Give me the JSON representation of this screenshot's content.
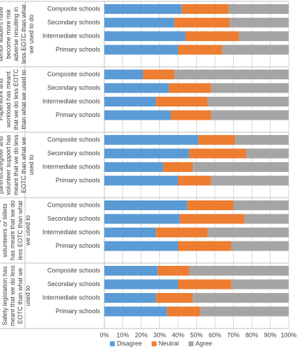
{
  "chart_data": {
    "type": "bar",
    "orientation": "horizontal",
    "stacked": true,
    "groups": [
      {
        "label": "School Boards and senior leaders have become more risk adverse resulting in less EOTC than what we used to do",
        "categories": [
          "Composite schools",
          "Secondary schools",
          "Intermediate schools",
          "Primary schools"
        ]
      },
      {
        "label": "Paperwork and workload has meant that we do less EOTC than what we used to",
        "categories": [
          "Composite schools",
          "Secondary schools",
          "Intermediate schools",
          "Primary schools"
        ]
      },
      {
        "label": "Difficulty getting parent/caregiver and volunteer support has meant that we do less EOTC than what we used to",
        "categories": [
          "Composite schools",
          "Secondary schools",
          "Intermediate schools",
          "Primary schools"
        ]
      },
      {
        "label": "Police vetting of all volunteers or billets has meant that we do less EOTC than what we used to",
        "categories": [
          "Composite schools",
          "Secondary schools",
          "Intermediate schools",
          "Primary schools"
        ]
      },
      {
        "label": "The new Health and Safety legislation has meant that we do less EOTC than what we used to",
        "categories": [
          "Composite schools",
          "Secondary schools",
          "Intermediate schools",
          "Primary schools"
        ]
      }
    ],
    "series": [
      {
        "name": "Disagree",
        "color": "#5b9bd5",
        "values": [
          [
            42,
            38,
            44,
            40
          ],
          [
            21,
            35,
            28,
            36
          ],
          [
            51,
            46,
            32,
            40
          ],
          [
            45,
            41,
            28,
            40
          ],
          [
            29,
            40,
            28,
            34
          ]
        ]
      },
      {
        "name": "Neutral",
        "color": "#ed7d31",
        "values": [
          [
            25.5,
            30,
            29,
            24
          ],
          [
            17,
            23,
            28,
            22
          ],
          [
            20,
            31,
            16,
            18
          ],
          [
            25,
            35,
            28,
            29
          ],
          [
            17,
            29,
            20,
            18
          ]
        ]
      },
      {
        "name": "Agree",
        "color": "#a5a5a5",
        "values": [
          [
            32.5,
            32,
            27,
            36
          ],
          [
            62,
            42,
            44,
            42
          ],
          [
            29,
            23,
            52,
            42
          ],
          [
            30,
            24,
            44,
            31
          ],
          [
            54,
            31,
            52,
            48
          ]
        ]
      }
    ],
    "xlim": [
      0,
      100
    ],
    "xticks": [
      {
        "value": 0,
        "label": "0%"
      },
      {
        "value": 10,
        "label": "10%"
      },
      {
        "value": 20,
        "label": "20%"
      },
      {
        "value": 30,
        "label": "30%"
      },
      {
        "value": 40,
        "label": "40%"
      },
      {
        "value": 50,
        "label": "50%"
      },
      {
        "value": 60,
        "label": "60%"
      },
      {
        "value": 70,
        "label": "70%"
      },
      {
        "value": 80,
        "label": "80%"
      },
      {
        "value": 90,
        "label": "90%"
      },
      {
        "value": 100,
        "label": "100%"
      }
    ],
    "grid": true,
    "legend": "bottom"
  }
}
